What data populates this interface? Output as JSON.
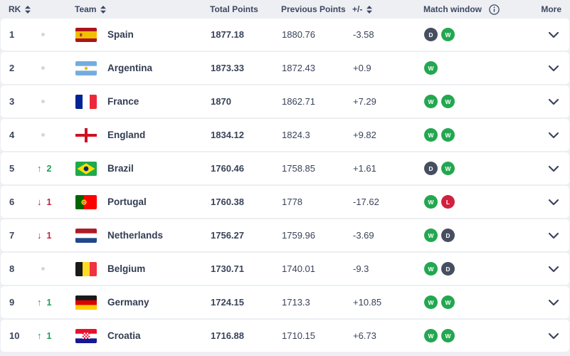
{
  "table": {
    "headers": {
      "rk": "RK",
      "team": "Team",
      "total_points": "Total Points",
      "previous_points": "Previous Points",
      "plus_minus": "+/-",
      "match_window": "Match window",
      "more": "More"
    },
    "colors": {
      "header_text": "#3d4763",
      "body_text": "#39435a",
      "row_bg": "#ffffff",
      "page_bg": "#edeff3",
      "badge_W": "#23a750",
      "badge_D": "#454f5f",
      "badge_L": "#d2213f",
      "movement_up": "#1f9e56",
      "movement_down": "#c02347",
      "no_movement_dot": "#d3d7dd"
    },
    "rows": [
      {
        "rank": "1",
        "movement": {
          "dir": "none",
          "value": ""
        },
        "team": "Spain",
        "flag": "es",
        "total_points": "1877.18",
        "previous_points": "1880.76",
        "change": "-3.58",
        "match_window": [
          "D",
          "W"
        ]
      },
      {
        "rank": "2",
        "movement": {
          "dir": "none",
          "value": ""
        },
        "team": "Argentina",
        "flag": "ar",
        "total_points": "1873.33",
        "previous_points": "1872.43",
        "change": "+0.9",
        "match_window": [
          "W"
        ]
      },
      {
        "rank": "3",
        "movement": {
          "dir": "none",
          "value": ""
        },
        "team": "France",
        "flag": "fr",
        "total_points": "1870",
        "previous_points": "1862.71",
        "change": "+7.29",
        "match_window": [
          "W",
          "W"
        ]
      },
      {
        "rank": "4",
        "movement": {
          "dir": "none",
          "value": ""
        },
        "team": "England",
        "flag": "en",
        "total_points": "1834.12",
        "previous_points": "1824.3",
        "change": "+9.82",
        "match_window": [
          "W",
          "W"
        ]
      },
      {
        "rank": "5",
        "movement": {
          "dir": "up",
          "value": "2"
        },
        "team": "Brazil",
        "flag": "br",
        "total_points": "1760.46",
        "previous_points": "1758.85",
        "change": "+1.61",
        "match_window": [
          "D",
          "W"
        ]
      },
      {
        "rank": "6",
        "movement": {
          "dir": "down",
          "value": "1"
        },
        "team": "Portugal",
        "flag": "pt",
        "total_points": "1760.38",
        "previous_points": "1778",
        "change": "-17.62",
        "match_window": [
          "W",
          "L"
        ]
      },
      {
        "rank": "7",
        "movement": {
          "dir": "down",
          "value": "1"
        },
        "team": "Netherlands",
        "flag": "nl",
        "total_points": "1756.27",
        "previous_points": "1759.96",
        "change": "-3.69",
        "match_window": [
          "W",
          "D"
        ]
      },
      {
        "rank": "8",
        "movement": {
          "dir": "none",
          "value": ""
        },
        "team": "Belgium",
        "flag": "be",
        "total_points": "1730.71",
        "previous_points": "1740.01",
        "change": "-9.3",
        "match_window": [
          "W",
          "D"
        ]
      },
      {
        "rank": "9",
        "movement": {
          "dir": "up",
          "value": "1"
        },
        "team": "Germany",
        "flag": "de",
        "total_points": "1724.15",
        "previous_points": "1713.3",
        "change": "+10.85",
        "match_window": [
          "W",
          "W"
        ]
      },
      {
        "rank": "10",
        "movement": {
          "dir": "up",
          "value": "1"
        },
        "team": "Croatia",
        "flag": "hr",
        "total_points": "1716.88",
        "previous_points": "1710.15",
        "change": "+6.73",
        "match_window": [
          "W",
          "W"
        ]
      }
    ]
  }
}
